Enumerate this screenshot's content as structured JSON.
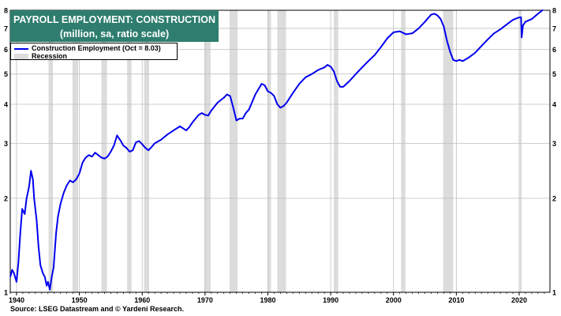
{
  "chart_data": {
    "type": "line",
    "title": "PAYROLL EMPLOYMENT: CONSTRUCTION",
    "subtitle": "(million, sa, ratio scale)",
    "yscale": "log",
    "ylim": [
      1,
      8
    ],
    "xlim": [
      1939,
      2024.9
    ],
    "y_ticks": [
      1,
      2,
      3,
      4,
      5,
      6,
      7,
      8
    ],
    "x_ticks": [
      1940,
      1950,
      1960,
      1970,
      1980,
      1990,
      2000,
      2010,
      2020
    ],
    "grid": true,
    "legend_position": "top-left",
    "colors": {
      "line": "#0000ee",
      "recession": "#dcdcdc",
      "title_bg": "#2e7d6e"
    },
    "series": [
      {
        "name": "Construction Employment (Oct = 8.03)",
        "x": [
          1939.0,
          1939.3,
          1939.6,
          1940.0,
          1940.3,
          1940.6,
          1940.9,
          1941.3,
          1941.6,
          1942.0,
          1942.3,
          1942.6,
          1942.8,
          1943.2,
          1943.5,
          1943.8,
          1944.2,
          1944.5,
          1944.8,
          1945.0,
          1945.3,
          1945.6,
          1945.9,
          1946.3,
          1946.6,
          1947.0,
          1947.5,
          1948.0,
          1948.5,
          1949.0,
          1949.5,
          1950.0,
          1950.5,
          1951.0,
          1951.5,
          1952.0,
          1952.5,
          1953.0,
          1953.5,
          1954.0,
          1954.5,
          1955.0,
          1955.5,
          1956.0,
          1956.6,
          1957.0,
          1957.5,
          1958.0,
          1958.5,
          1959.0,
          1959.5,
          1960.0,
          1960.5,
          1961.0,
          1961.5,
          1962.0,
          1963.0,
          1964.0,
          1965.0,
          1966.0,
          1966.5,
          1967.0,
          1967.5,
          1968.0,
          1969.0,
          1969.5,
          1970.0,
          1970.5,
          1971.0,
          1972.0,
          1973.0,
          1973.5,
          1974.0,
          1974.5,
          1975.0,
          1975.5,
          1976.0,
          1976.5,
          1977.0,
          1978.0,
          1979.0,
          1979.5,
          1980.0,
          1980.5,
          1981.0,
          1981.5,
          1982.0,
          1982.5,
          1983.0,
          1984.0,
          1985.0,
          1986.0,
          1987.0,
          1988.0,
          1989.0,
          1989.5,
          1990.0,
          1990.5,
          1991.0,
          1991.5,
          1992.0,
          1993.0,
          1994.0,
          1995.0,
          1996.0,
          1997.0,
          1998.0,
          1999.0,
          2000.0,
          2001.0,
          2002.0,
          2003.0,
          2004.0,
          2005.0,
          2006.0,
          2006.5,
          2007.0,
          2007.5,
          2008.0,
          2008.5,
          2009.0,
          2009.5,
          2010.0,
          2010.5,
          2011.0,
          2012.0,
          2013.0,
          2014.0,
          2015.0,
          2016.0,
          2017.0,
          2018.0,
          2019.0,
          2019.9,
          2020.3,
          2020.4,
          2020.6,
          2021.0,
          2022.0,
          2023.0,
          2023.8
        ],
        "y": [
          1.12,
          1.18,
          1.15,
          1.08,
          1.25,
          1.55,
          1.85,
          1.78,
          2.0,
          2.18,
          2.45,
          2.3,
          2.0,
          1.7,
          1.4,
          1.22,
          1.15,
          1.12,
          1.05,
          1.08,
          1.02,
          1.12,
          1.2,
          1.55,
          1.75,
          1.92,
          2.08,
          2.2,
          2.28,
          2.25,
          2.3,
          2.4,
          2.6,
          2.7,
          2.75,
          2.72,
          2.8,
          2.75,
          2.7,
          2.68,
          2.72,
          2.82,
          2.95,
          3.18,
          3.05,
          2.95,
          2.9,
          2.82,
          2.85,
          3.02,
          3.05,
          2.98,
          2.9,
          2.85,
          2.92,
          3.0,
          3.08,
          3.2,
          3.3,
          3.4,
          3.35,
          3.3,
          3.38,
          3.5,
          3.7,
          3.75,
          3.7,
          3.68,
          3.82,
          4.05,
          4.2,
          4.3,
          4.25,
          3.9,
          3.55,
          3.6,
          3.6,
          3.75,
          3.85,
          4.3,
          4.65,
          4.6,
          4.4,
          4.35,
          4.25,
          4.0,
          3.9,
          3.95,
          4.05,
          4.35,
          4.65,
          4.88,
          5.0,
          5.15,
          5.25,
          5.35,
          5.28,
          5.1,
          4.75,
          4.55,
          4.55,
          4.75,
          5.0,
          5.25,
          5.5,
          5.75,
          6.1,
          6.5,
          6.8,
          6.85,
          6.7,
          6.75,
          7.0,
          7.35,
          7.75,
          7.8,
          7.7,
          7.5,
          7.1,
          6.4,
          5.9,
          5.55,
          5.5,
          5.55,
          5.5,
          5.65,
          5.85,
          6.15,
          6.45,
          6.75,
          6.95,
          7.2,
          7.45,
          7.58,
          7.6,
          6.55,
          7.15,
          7.35,
          7.5,
          7.8,
          8.03
        ]
      }
    ],
    "recessions": [
      [
        1945.1,
        1945.8
      ],
      [
        1948.9,
        1949.8
      ],
      [
        1953.5,
        1954.4
      ],
      [
        1957.6,
        1958.3
      ],
      [
        1960.3,
        1961.1
      ],
      [
        1969.9,
        1970.9
      ],
      [
        1973.9,
        1975.2
      ],
      [
        1980.0,
        1980.5
      ],
      [
        1981.5,
        1982.9
      ],
      [
        1990.5,
        1991.2
      ],
      [
        2001.2,
        2001.9
      ],
      [
        2007.9,
        2009.5
      ],
      [
        2020.1,
        2020.4
      ]
    ],
    "recession_label": "Recession",
    "source": "Source: LSEG Datastream and © Yardeni Research."
  }
}
